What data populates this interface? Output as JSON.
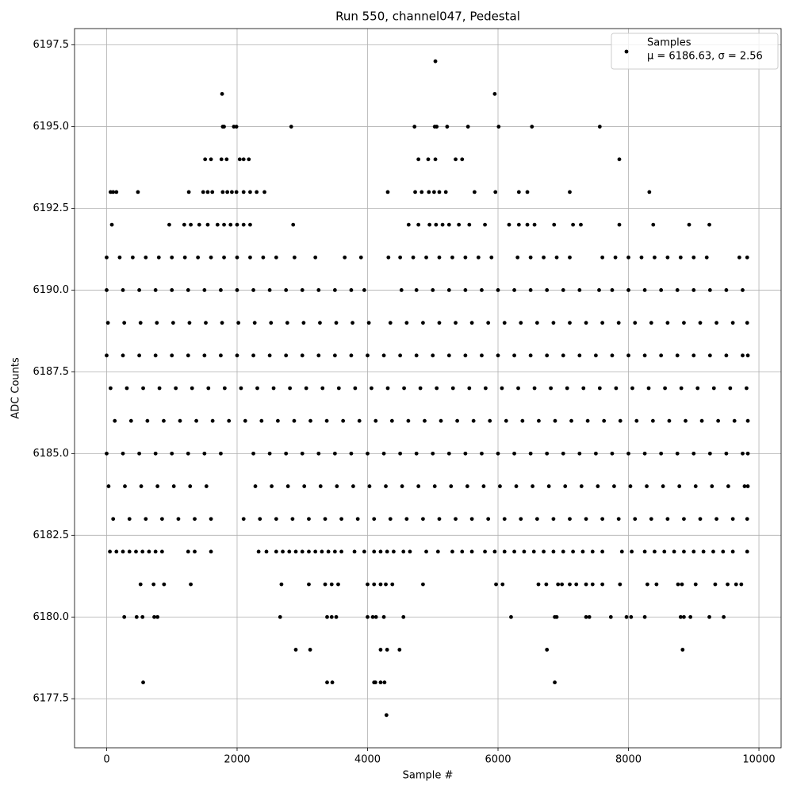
{
  "chart_data": {
    "type": "scatter",
    "title": "Run 550, channel047, Pedestal",
    "x_label": "Sample #",
    "y_label": "ADC Counts",
    "legend_stats": "μ = 6186.63, σ = 2.56",
    "legend_position": "upper right",
    "grid": true,
    "xlim": [
      -492,
      10340
    ],
    "ylim": [
      6176,
      6198
    ],
    "xticks": [
      0,
      2000,
      4000,
      6000,
      8000,
      10000
    ],
    "yticks": [
      6177.5,
      {
        "value": 6180,
        "label": "6180.0"
      },
      6182.5,
      {
        "value": 6185,
        "label": "6185.0"
      },
      6187.5,
      {
        "value": 6190,
        "label": "6190.0"
      },
      6192.5,
      {
        "value": 6195,
        "label": "6195.0"
      },
      6197.5
    ],
    "series": [
      {
        "name": "Samples",
        "color": "#000000",
        "x": [
          5040,
          1770,
          5950,
          1780,
          1800,
          1950,
          1990,
          2830,
          4720,
          5030,
          5060,
          5220,
          5540,
          6010,
          6520,
          7560,
          1510,
          1600,
          1760,
          1840,
          2040,
          2100,
          2180,
          4780,
          4930,
          5040,
          5350,
          5450,
          7860,
          60,
          100,
          150,
          480,
          1260,
          1480,
          1550,
          1620,
          1780,
          1850,
          1920,
          1990,
          2100,
          2200,
          2300,
          2420,
          4310,
          4730,
          4830,
          4940,
          5020,
          5100,
          5200,
          5640,
          5960,
          6320,
          6450,
          7100,
          8320,
          80,
          960,
          1190,
          1290,
          1420,
          1550,
          1700,
          1800,
          1900,
          2000,
          2100,
          2200,
          2860,
          4630,
          4780,
          4950,
          5050,
          5150,
          5250,
          5400,
          5560,
          5800,
          6170,
          6320,
          6450,
          6560,
          6860,
          7150,
          7270,
          7860,
          8380,
          8930,
          9240,
          0,
          200,
          400,
          600,
          800,
          1000,
          1200,
          1400,
          1600,
          1800,
          2000,
          2200,
          2400,
          2600,
          2880,
          3200,
          3650,
          3900,
          4320,
          4500,
          4700,
          4900,
          5100,
          5300,
          5500,
          5700,
          5900,
          6300,
          6500,
          6700,
          6900,
          7100,
          7600,
          7800,
          8000,
          8200,
          8400,
          8600,
          8800,
          9000,
          9200,
          9700,
          9820,
          0,
          250,
          500,
          750,
          1000,
          1250,
          1500,
          1750,
          2000,
          2250,
          2500,
          2750,
          3000,
          3250,
          3500,
          3750,
          3950,
          4520,
          4750,
          5000,
          5250,
          5500,
          5750,
          6000,
          6250,
          6500,
          6750,
          7000,
          7250,
          7550,
          7750,
          8000,
          8250,
          8500,
          8750,
          9000,
          9250,
          9500,
          9750,
          20,
          270,
          520,
          770,
          1020,
          1270,
          1520,
          1770,
          2020,
          2270,
          2520,
          2770,
          3020,
          3270,
          3520,
          3770,
          4020,
          4350,
          4600,
          4850,
          5100,
          5350,
          5600,
          5850,
          6100,
          6350,
          6600,
          6850,
          7100,
          7350,
          7600,
          7850,
          8100,
          8350,
          8600,
          8850,
          9100,
          9350,
          9600,
          9820,
          0,
          250,
          500,
          750,
          1000,
          1250,
          1500,
          1750,
          2000,
          2250,
          2500,
          2750,
          3000,
          3250,
          3500,
          3750,
          4000,
          4250,
          4500,
          4750,
          5000,
          5250,
          5500,
          5750,
          6000,
          6250,
          6500,
          6750,
          7000,
          7250,
          7500,
          7750,
          8000,
          8250,
          8500,
          8750,
          9000,
          9250,
          9500,
          9750,
          9830,
          60,
          310,
          560,
          810,
          1060,
          1310,
          1560,
          1810,
          2060,
          2310,
          2560,
          2810,
          3060,
          3310,
          3560,
          3810,
          4060,
          4310,
          4560,
          4810,
          5060,
          5310,
          5560,
          5810,
          6060,
          6310,
          6560,
          6810,
          7060,
          7310,
          7560,
          7810,
          8060,
          8310,
          8560,
          8810,
          9060,
          9310,
          9560,
          9810,
          125,
          375,
          625,
          875,
          1125,
          1375,
          1625,
          1875,
          2125,
          2375,
          2625,
          2875,
          3125,
          3375,
          3625,
          3875,
          4125,
          4375,
          4625,
          4875,
          5125,
          5375,
          5625,
          5875,
          6125,
          6375,
          6625,
          6875,
          7125,
          7375,
          7625,
          7875,
          8125,
          8375,
          8625,
          8875,
          9125,
          9375,
          9625,
          9830,
          0,
          250,
          500,
          750,
          1000,
          1250,
          1500,
          1750,
          2250,
          2500,
          2750,
          3000,
          3250,
          3500,
          3750,
          4000,
          4250,
          4500,
          4750,
          5000,
          5250,
          5500,
          5750,
          6000,
          6250,
          6500,
          6750,
          7000,
          7250,
          7500,
          7750,
          8000,
          8250,
          8500,
          8750,
          9000,
          9250,
          9500,
          9750,
          9830,
          30,
          280,
          530,
          780,
          1030,
          1280,
          1530,
          2280,
          2530,
          2780,
          3030,
          3280,
          3530,
          3780,
          4030,
          4280,
          4530,
          4780,
          5030,
          5280,
          5530,
          5780,
          6030,
          6280,
          6530,
          6780,
          7030,
          7280,
          7530,
          7780,
          8030,
          8280,
          8530,
          8780,
          9030,
          9280,
          9530,
          9780,
          9830,
          100,
          350,
          600,
          850,
          1100,
          1350,
          1600,
          2100,
          2350,
          2600,
          2850,
          3100,
          3350,
          3600,
          3850,
          4100,
          4350,
          4600,
          4850,
          5100,
          5350,
          5600,
          5850,
          6100,
          6350,
          6600,
          6850,
          7100,
          7350,
          7600,
          7850,
          8100,
          8350,
          8600,
          8850,
          9100,
          9350,
          9600,
          9820,
          50,
          150,
          250,
          350,
          450,
          550,
          650,
          750,
          850,
          1250,
          1350,
          1600,
          2330,
          2450,
          2600,
          2700,
          2800,
          2900,
          3000,
          3100,
          3200,
          3300,
          3400,
          3500,
          3600,
          3800,
          3950,
          4100,
          4200,
          4300,
          4400,
          4550,
          4650,
          4900,
          5080,
          5300,
          5450,
          5600,
          5800,
          5950,
          6100,
          6250,
          6400,
          6550,
          6700,
          6850,
          7000,
          7150,
          7300,
          7450,
          7600,
          7900,
          8050,
          8250,
          8400,
          8550,
          8700,
          8850,
          9000,
          9150,
          9300,
          9450,
          9600,
          9820,
          520,
          720,
          880,
          1290,
          2680,
          3100,
          3350,
          3450,
          3550,
          4000,
          4100,
          4200,
          4280,
          4380,
          4850,
          5970,
          6070,
          6620,
          6740,
          6920,
          6980,
          7100,
          7200,
          7350,
          7450,
          7600,
          7870,
          8290,
          8430,
          8760,
          8820,
          9030,
          9330,
          9520,
          9650,
          9730,
          270,
          460,
          550,
          730,
          780,
          2660,
          3380,
          3450,
          3520,
          4000,
          4080,
          4130,
          4250,
          4550,
          6200,
          6870,
          6900,
          7350,
          7400,
          7730,
          7970,
          8040,
          8250,
          8800,
          8850,
          8950,
          9240,
          9460,
          2900,
          3120,
          4200,
          4300,
          4490,
          6750,
          8830,
          560,
          3380,
          3460,
          4100,
          4120,
          4200,
          4260,
          6870,
          4290
        ],
        "values": [
          6197,
          6196,
          6196,
          6195,
          6195,
          6195,
          6195,
          6195,
          6195,
          6195,
          6195,
          6195,
          6195,
          6195,
          6195,
          6195,
          6194,
          6194,
          6194,
          6194,
          6194,
          6194,
          6194,
          6194,
          6194,
          6194,
          6194,
          6194,
          6194,
          6193,
          6193,
          6193,
          6193,
          6193,
          6193,
          6193,
          6193,
          6193,
          6193,
          6193,
          6193,
          6193,
          6193,
          6193,
          6193,
          6193,
          6193,
          6193,
          6193,
          6193,
          6193,
          6193,
          6193,
          6193,
          6193,
          6193,
          6193,
          6193,
          6192,
          6192,
          6192,
          6192,
          6192,
          6192,
          6192,
          6192,
          6192,
          6192,
          6192,
          6192,
          6192,
          6192,
          6192,
          6192,
          6192,
          6192,
          6192,
          6192,
          6192,
          6192,
          6192,
          6192,
          6192,
          6192,
          6192,
          6192,
          6192,
          6192,
          6192,
          6192,
          6192,
          6191,
          6191,
          6191,
          6191,
          6191,
          6191,
          6191,
          6191,
          6191,
          6191,
          6191,
          6191,
          6191,
          6191,
          6191,
          6191,
          6191,
          6191,
          6191,
          6191,
          6191,
          6191,
          6191,
          6191,
          6191,
          6191,
          6191,
          6191,
          6191,
          6191,
          6191,
          6191,
          6191,
          6191,
          6191,
          6191,
          6191,
          6191,
          6191,
          6191,
          6191,
          6191,
          6191,
          6190,
          6190,
          6190,
          6190,
          6190,
          6190,
          6190,
          6190,
          6190,
          6190,
          6190,
          6190,
          6190,
          6190,
          6190,
          6190,
          6190,
          6190,
          6190,
          6190,
          6190,
          6190,
          6190,
          6190,
          6190,
          6190,
          6190,
          6190,
          6190,
          6190,
          6190,
          6190,
          6190,
          6190,
          6190,
          6190,
          6190,
          6190,
          6190,
          6189,
          6189,
          6189,
          6189,
          6189,
          6189,
          6189,
          6189,
          6189,
          6189,
          6189,
          6189,
          6189,
          6189,
          6189,
          6189,
          6189,
          6189,
          6189,
          6189,
          6189,
          6189,
          6189,
          6189,
          6189,
          6189,
          6189,
          6189,
          6189,
          6189,
          6189,
          6189,
          6189,
          6189,
          6189,
          6189,
          6189,
          6189,
          6189,
          6189,
          6188,
          6188,
          6188,
          6188,
          6188,
          6188,
          6188,
          6188,
          6188,
          6188,
          6188,
          6188,
          6188,
          6188,
          6188,
          6188,
          6188,
          6188,
          6188,
          6188,
          6188,
          6188,
          6188,
          6188,
          6188,
          6188,
          6188,
          6188,
          6188,
          6188,
          6188,
          6188,
          6188,
          6188,
          6188,
          6188,
          6188,
          6188,
          6188,
          6188,
          6188,
          6187,
          6187,
          6187,
          6187,
          6187,
          6187,
          6187,
          6187,
          6187,
          6187,
          6187,
          6187,
          6187,
          6187,
          6187,
          6187,
          6187,
          6187,
          6187,
          6187,
          6187,
          6187,
          6187,
          6187,
          6187,
          6187,
          6187,
          6187,
          6187,
          6187,
          6187,
          6187,
          6187,
          6187,
          6187,
          6187,
          6187,
          6187,
          6187,
          6187,
          6186,
          6186,
          6186,
          6186,
          6186,
          6186,
          6186,
          6186,
          6186,
          6186,
          6186,
          6186,
          6186,
          6186,
          6186,
          6186,
          6186,
          6186,
          6186,
          6186,
          6186,
          6186,
          6186,
          6186,
          6186,
          6186,
          6186,
          6186,
          6186,
          6186,
          6186,
          6186,
          6186,
          6186,
          6186,
          6186,
          6186,
          6186,
          6186,
          6186,
          6185,
          6185,
          6185,
          6185,
          6185,
          6185,
          6185,
          6185,
          6185,
          6185,
          6185,
          6185,
          6185,
          6185,
          6185,
          6185,
          6185,
          6185,
          6185,
          6185,
          6185,
          6185,
          6185,
          6185,
          6185,
          6185,
          6185,
          6185,
          6185,
          6185,
          6185,
          6185,
          6185,
          6185,
          6185,
          6185,
          6185,
          6185,
          6185,
          6185,
          6184,
          6184,
          6184,
          6184,
          6184,
          6184,
          6184,
          6184,
          6184,
          6184,
          6184,
          6184,
          6184,
          6184,
          6184,
          6184,
          6184,
          6184,
          6184,
          6184,
          6184,
          6184,
          6184,
          6184,
          6184,
          6184,
          6184,
          6184,
          6184,
          6184,
          6184,
          6184,
          6184,
          6184,
          6184,
          6184,
          6184,
          6184,
          6184,
          6183,
          6183,
          6183,
          6183,
          6183,
          6183,
          6183,
          6183,
          6183,
          6183,
          6183,
          6183,
          6183,
          6183,
          6183,
          6183,
          6183,
          6183,
          6183,
          6183,
          6183,
          6183,
          6183,
          6183,
          6183,
          6183,
          6183,
          6183,
          6183,
          6183,
          6183,
          6183,
          6183,
          6183,
          6183,
          6183,
          6183,
          6183,
          6183,
          6182,
          6182,
          6182,
          6182,
          6182,
          6182,
          6182,
          6182,
          6182,
          6182,
          6182,
          6182,
          6182,
          6182,
          6182,
          6182,
          6182,
          6182,
          6182,
          6182,
          6182,
          6182,
          6182,
          6182,
          6182,
          6182,
          6182,
          6182,
          6182,
          6182,
          6182,
          6182,
          6182,
          6182,
          6182,
          6182,
          6182,
          6182,
          6182,
          6182,
          6182,
          6182,
          6182,
          6182,
          6182,
          6182,
          6182,
          6182,
          6182,
          6182,
          6182,
          6182,
          6182,
          6182,
          6182,
          6182,
          6182,
          6182,
          6182,
          6182,
          6182,
          6182,
          6182,
          6182,
          6181,
          6181,
          6181,
          6181,
          6181,
          6181,
          6181,
          6181,
          6181,
          6181,
          6181,
          6181,
          6181,
          6181,
          6181,
          6181,
          6181,
          6181,
          6181,
          6181,
          6181,
          6181,
          6181,
          6181,
          6181,
          6181,
          6181,
          6181,
          6181,
          6181,
          6181,
          6181,
          6181,
          6181,
          6181,
          6181,
          6180,
          6180,
          6180,
          6180,
          6180,
          6180,
          6180,
          6180,
          6180,
          6180,
          6180,
          6180,
          6180,
          6180,
          6180,
          6180,
          6180,
          6180,
          6180,
          6180,
          6180,
          6180,
          6180,
          6180,
          6180,
          6180,
          6180,
          6180,
          6179,
          6179,
          6179,
          6179,
          6179,
          6179,
          6179,
          6178,
          6178,
          6178,
          6178,
          6178,
          6178,
          6178,
          6178,
          6177
        ]
      }
    ]
  }
}
